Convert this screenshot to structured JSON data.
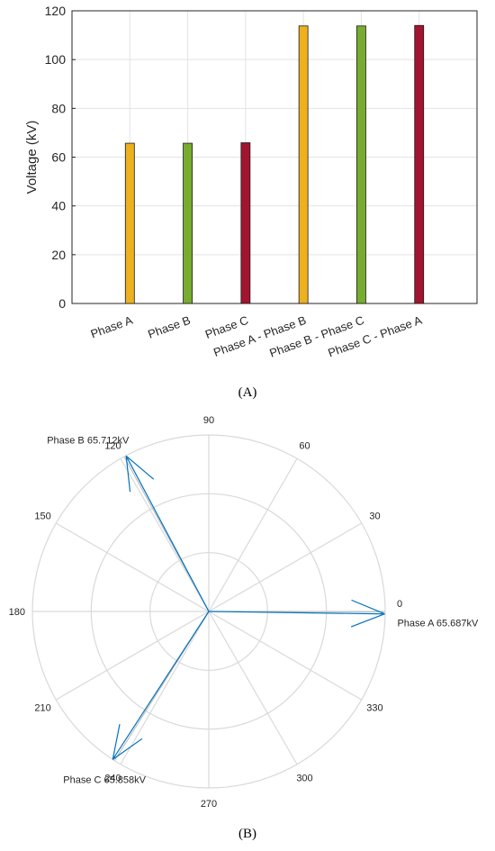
{
  "chart_data": [
    {
      "type": "bar",
      "panel_label": "(A)",
      "ylabel": "Voltage (kV)",
      "ylim": [
        0,
        120
      ],
      "yticks": [
        "0",
        "20",
        "40",
        "60",
        "80",
        "100",
        "120"
      ],
      "grid": true,
      "categories": [
        "Phase A",
        "Phase B",
        "Phase C",
        "Phase A - Phase B",
        "Phase B - Phase C",
        "Phase C - Phase A"
      ],
      "values": [
        65.7,
        65.7,
        65.9,
        113.8,
        113.8,
        114.0
      ],
      "colors": [
        "#EDB120",
        "#77AC30",
        "#A2142F",
        "#EDB120",
        "#77AC30",
        "#A2142F"
      ]
    },
    {
      "type": "polar",
      "panel_label": "(B)",
      "angle_ticks": [
        "0",
        "30",
        "60",
        "90",
        "120",
        "150",
        "180",
        "210",
        "240",
        "270",
        "300",
        "330"
      ],
      "grid": true,
      "line_color": "#0072BD",
      "vectors": [
        {
          "label": "Phase A  65.687kV",
          "magnitude": 65.687,
          "angle": -0.8
        },
        {
          "label": "Phase B  65.712kV",
          "magnitude": 65.712,
          "angle": 118
        },
        {
          "label": "Phase C  65.858kV",
          "magnitude": 65.858,
          "angle": 237
        }
      ]
    }
  ]
}
